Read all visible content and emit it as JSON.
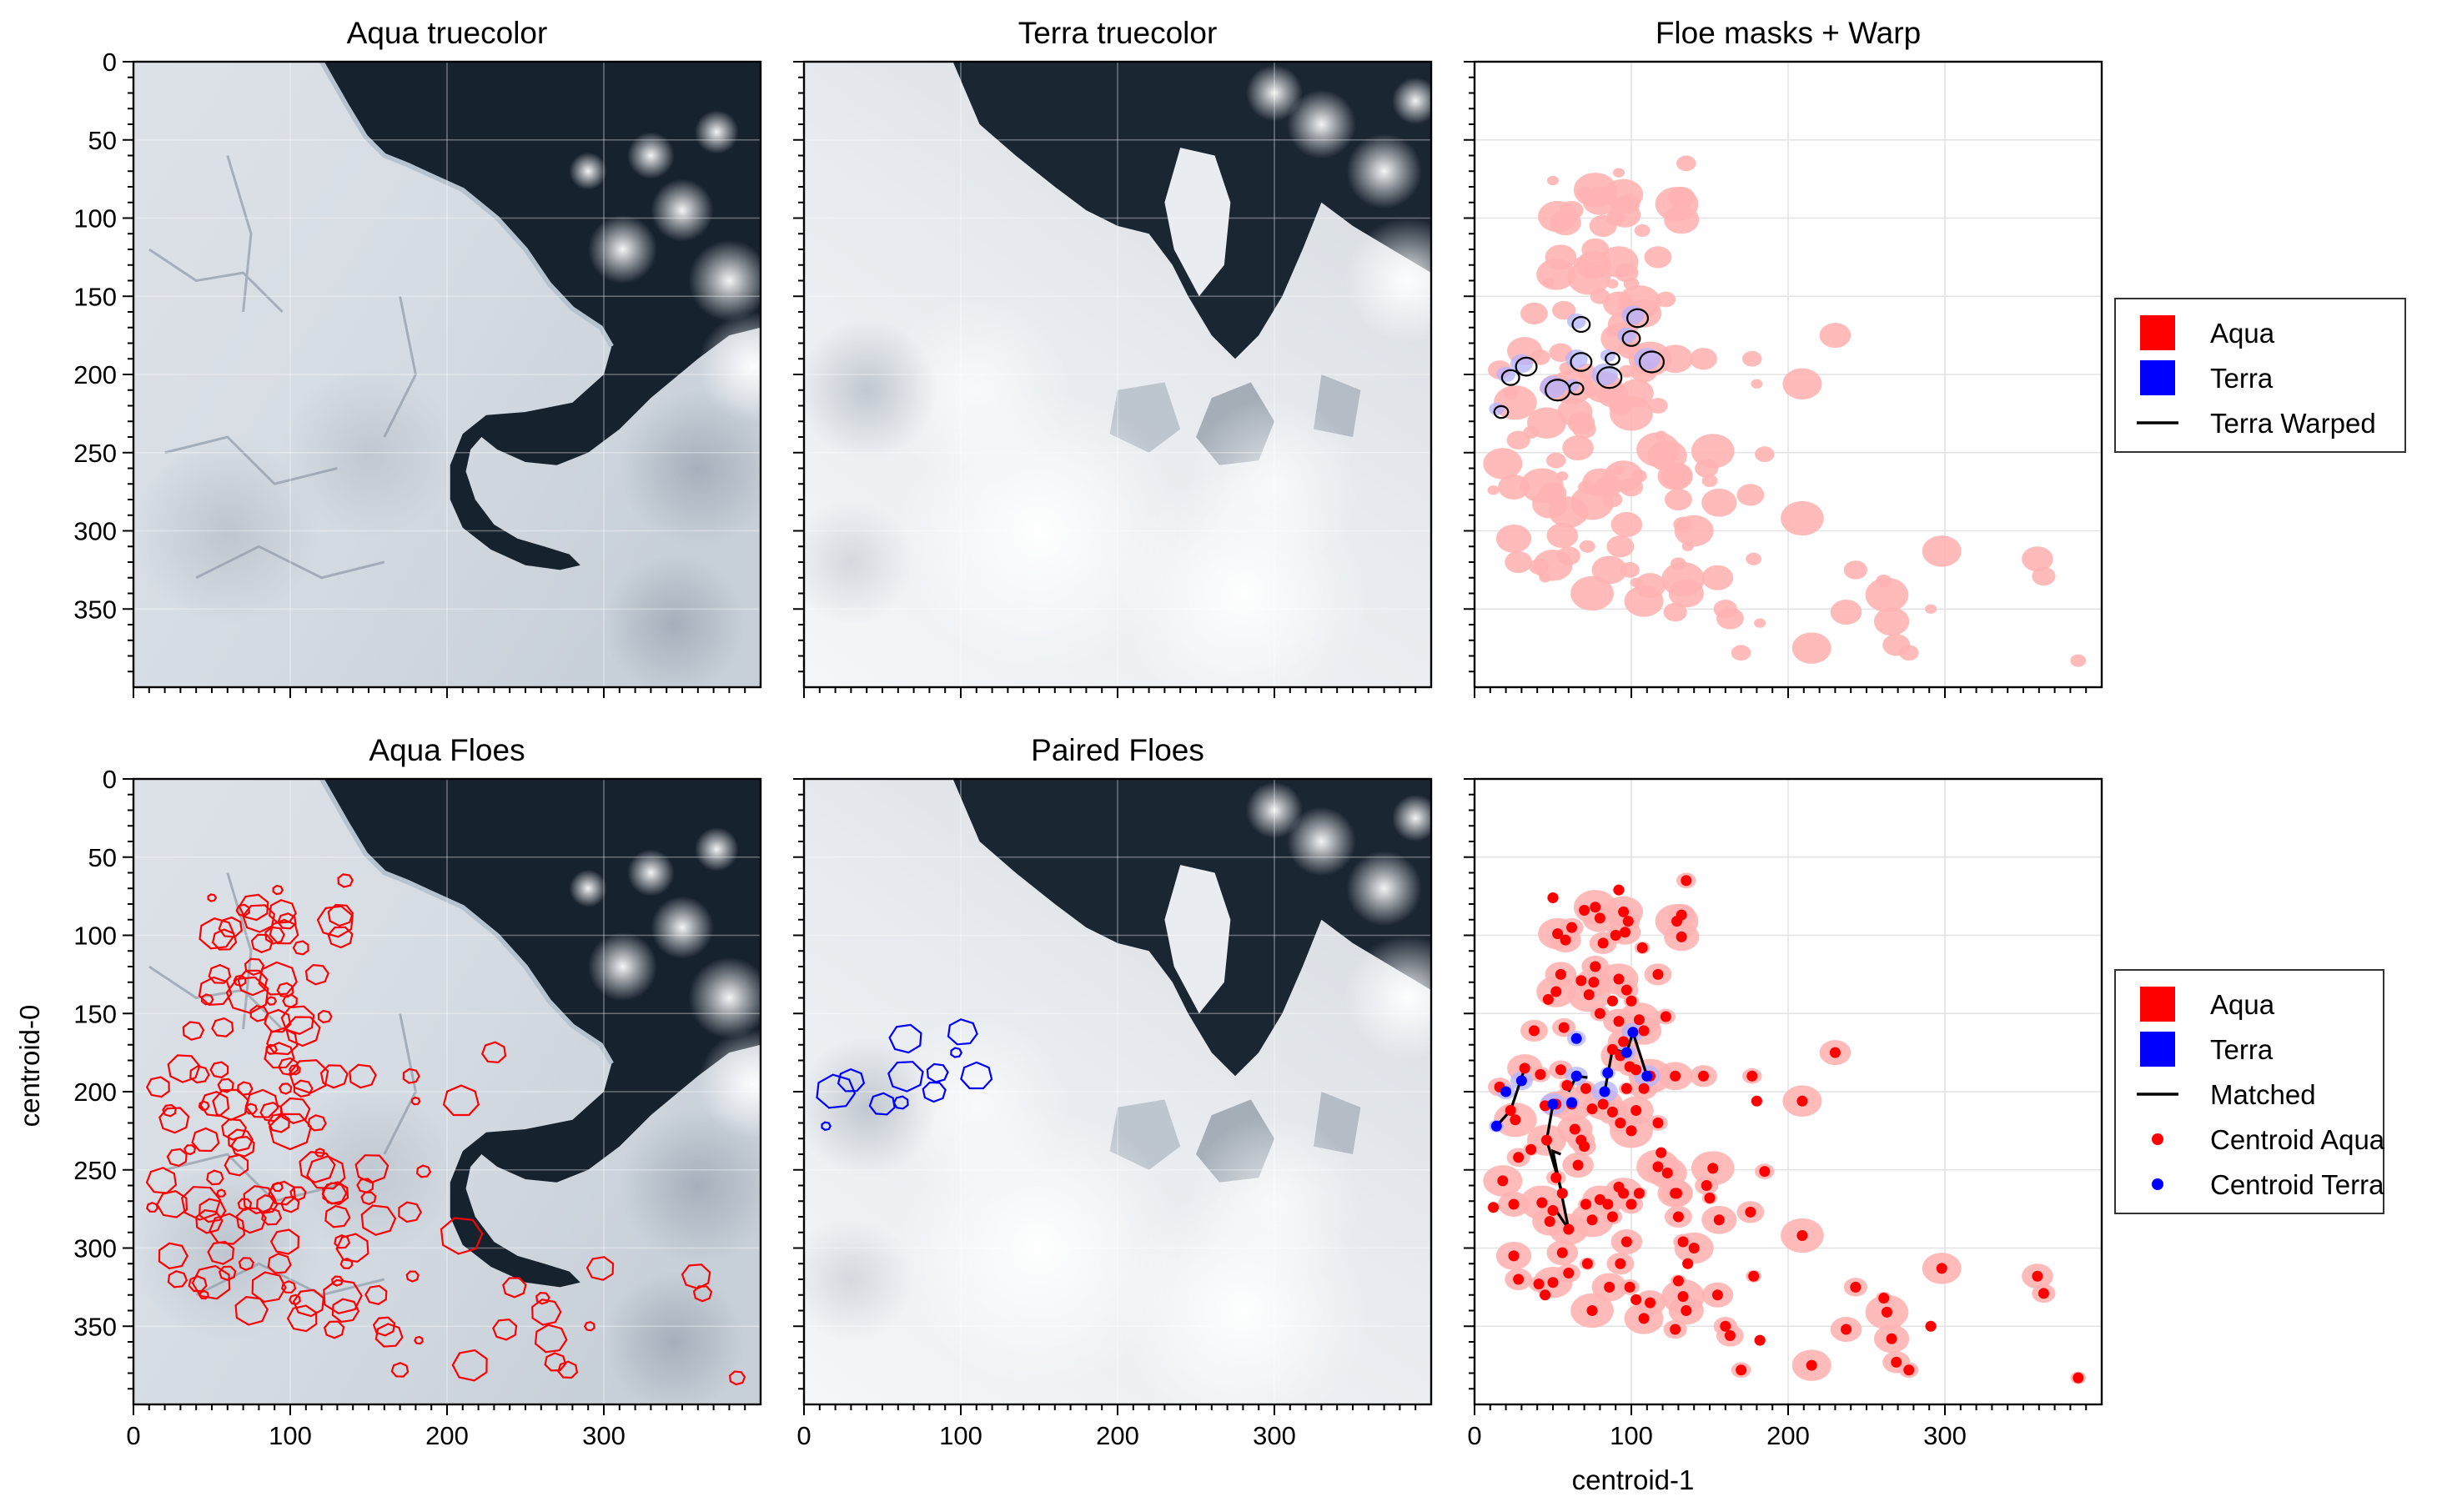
{
  "figure": {
    "panels": [
      {
        "id": "p1",
        "title": "Aqua truecolor",
        "kind": "image",
        "scene": "aqua",
        "show_y_ticks": true,
        "show_x_ticks": false
      },
      {
        "id": "p2",
        "title": "Terra truecolor",
        "kind": "image",
        "scene": "terra",
        "show_y_ticks": false,
        "show_x_ticks": false
      },
      {
        "id": "p3",
        "title": "Floe masks + Warp",
        "kind": "masks",
        "show_y_ticks": false,
        "show_x_ticks": false
      },
      {
        "id": "p4",
        "title": "Aqua Floes",
        "kind": "image",
        "scene": "aqua",
        "outlines": "aqua",
        "show_y_ticks": true,
        "show_x_ticks": true
      },
      {
        "id": "p5",
        "title": "Paired Floes",
        "kind": "image",
        "scene": "terra",
        "outlines": "terra",
        "show_y_ticks": false,
        "show_x_ticks": true
      },
      {
        "id": "p6",
        "title": "",
        "kind": "centroids",
        "show_y_ticks": false,
        "show_x_ticks": true
      }
    ],
    "legend_top": [
      {
        "label": "Aqua",
        "kind": "patch",
        "color": "#ff0000"
      },
      {
        "label": "Terra",
        "kind": "patch",
        "color": "#0000ff"
      },
      {
        "label": "Terra Warped",
        "kind": "line",
        "color": "#000000"
      }
    ],
    "legend_bottom": [
      {
        "label": "Aqua",
        "kind": "patch",
        "color": "#ff0000"
      },
      {
        "label": "Terra",
        "kind": "patch",
        "color": "#0000ff"
      },
      {
        "label": "Matched",
        "kind": "line",
        "color": "#000000"
      },
      {
        "label": "Centroid Aqua",
        "kind": "dot",
        "color": "#ff0000"
      },
      {
        "label": "Centroid Terra",
        "kind": "dot",
        "color": "#0000ff"
      }
    ]
  },
  "chart_data": {
    "type": "scatter",
    "xlabel": "centroid-1",
    "ylabel": "centroid-0",
    "xlim": [
      0,
      400
    ],
    "ylim": [
      400,
      0
    ],
    "xticks": [
      0,
      100,
      200,
      300
    ],
    "yticks": [
      0,
      50,
      100,
      150,
      200,
      250,
      300,
      350
    ],
    "grid": true,
    "legend_position": "right",
    "colors": {
      "aqua": "#ff0000",
      "terra": "#0000ff",
      "matched": "#000000",
      "aqua_mask": "#ffb3b3",
      "terra_mask": "#b3b3ff"
    },
    "series": [
      {
        "name": "Centroid Aqua",
        "points": [
          [
            50,
            76
          ],
          [
            53,
            99
          ],
          [
            58,
            103
          ],
          [
            62,
            95
          ],
          [
            70,
            84
          ],
          [
            77,
            82
          ],
          [
            80,
            89
          ],
          [
            82,
            105
          ],
          [
            90,
            100
          ],
          [
            92,
            71
          ],
          [
            95,
            85
          ],
          [
            96,
            98
          ],
          [
            98,
            91
          ],
          [
            107,
            108
          ],
          [
            129,
            91
          ],
          [
            132,
            101
          ],
          [
            132,
            87
          ],
          [
            135,
            65
          ],
          [
            47,
            141
          ],
          [
            52,
            136
          ],
          [
            55,
            125
          ],
          [
            57,
            159
          ],
          [
            68,
            129
          ],
          [
            73,
            138
          ],
          [
            76,
            130
          ],
          [
            77,
            120
          ],
          [
            80,
            150
          ],
          [
            88,
            142
          ],
          [
            92,
            128
          ],
          [
            92,
            155
          ],
          [
            97,
            135
          ],
          [
            100,
            142
          ],
          [
            105,
            154
          ],
          [
            108,
            161
          ],
          [
            117,
            125
          ],
          [
            122,
            152
          ],
          [
            88,
            173
          ],
          [
            93,
            177
          ],
          [
            95,
            168
          ],
          [
            99,
            184
          ],
          [
            103,
            186
          ],
          [
            112,
            190
          ],
          [
            128,
            190
          ],
          [
            146,
            190
          ],
          [
            177,
            190
          ],
          [
            180,
            206
          ],
          [
            209,
            206
          ],
          [
            230,
            175
          ],
          [
            16,
            197
          ],
          [
            23,
            212
          ],
          [
            26,
            218
          ],
          [
            32,
            185
          ],
          [
            38,
            161
          ],
          [
            42,
            189
          ],
          [
            45,
            209
          ],
          [
            46,
            231
          ],
          [
            52,
            208
          ],
          [
            55,
            186
          ],
          [
            59,
            196
          ],
          [
            62,
            208
          ],
          [
            64,
            224
          ],
          [
            68,
            231
          ],
          [
            71,
            198
          ],
          [
            75,
            211
          ],
          [
            82,
            208
          ],
          [
            88,
            213
          ],
          [
            93,
            220
          ],
          [
            97,
            198
          ],
          [
            100,
            225
          ],
          [
            103,
            212
          ],
          [
            108,
            198
          ],
          [
            117,
            220
          ],
          [
            119,
            239
          ],
          [
            123,
            252
          ],
          [
            129,
            265
          ],
          [
            148,
            260
          ],
          [
            150,
            268
          ],
          [
            152,
            249
          ],
          [
            156,
            282
          ],
          [
            176,
            277
          ],
          [
            185,
            251
          ],
          [
            12,
            274
          ],
          [
            18,
            257
          ],
          [
            25,
            272
          ],
          [
            28,
            242
          ],
          [
            36,
            237
          ],
          [
            43,
            271
          ],
          [
            48,
            283
          ],
          [
            50,
            276
          ],
          [
            52,
            255
          ],
          [
            56,
            265
          ],
          [
            60,
            288
          ],
          [
            66,
            247
          ],
          [
            70,
            235
          ],
          [
            71,
            272
          ],
          [
            75,
            282
          ],
          [
            80,
            269
          ],
          [
            85,
            272
          ],
          [
            88,
            280
          ],
          [
            92,
            261
          ],
          [
            95,
            265
          ],
          [
            97,
            296
          ],
          [
            100,
            272
          ],
          [
            105,
            265
          ],
          [
            117,
            248
          ],
          [
            128,
            265
          ],
          [
            130,
            280
          ],
          [
            133,
            296
          ],
          [
            136,
            310
          ],
          [
            140,
            300
          ],
          [
            155,
            330
          ],
          [
            160,
            350
          ],
          [
            178,
            318
          ],
          [
            209,
            292
          ],
          [
            25,
            305
          ],
          [
            28,
            320
          ],
          [
            41,
            323
          ],
          [
            45,
            330
          ],
          [
            50,
            322
          ],
          [
            56,
            303
          ],
          [
            60,
            316
          ],
          [
            72,
            310
          ],
          [
            75,
            340
          ],
          [
            86,
            325
          ],
          [
            93,
            310
          ],
          [
            99,
            325
          ],
          [
            103,
            333
          ],
          [
            108,
            345
          ],
          [
            112,
            335
          ],
          [
            128,
            352
          ],
          [
            130,
            321
          ],
          [
            133,
            331
          ],
          [
            135,
            340
          ],
          [
            163,
            356
          ],
          [
            170,
            378
          ],
          [
            182,
            359
          ],
          [
            215,
            375
          ],
          [
            237,
            352
          ],
          [
            243,
            325
          ],
          [
            261,
            332
          ],
          [
            263,
            341
          ],
          [
            266,
            358
          ],
          [
            269,
            373
          ],
          [
            277,
            378
          ],
          [
            291,
            350
          ],
          [
            298,
            313
          ],
          [
            359,
            318
          ],
          [
            363,
            329
          ],
          [
            385,
            383
          ]
        ]
      },
      {
        "name": "Centroid Terra",
        "points": [
          [
            14,
            222
          ],
          [
            20,
            200
          ],
          [
            30,
            193
          ],
          [
            50,
            208
          ],
          [
            62,
            207
          ],
          [
            65,
            166
          ],
          [
            65,
            190
          ],
          [
            83,
            200
          ],
          [
            85,
            188
          ],
          [
            97,
            175
          ],
          [
            101,
            162
          ],
          [
            110,
            190
          ]
        ]
      }
    ],
    "matched_lines": [
      [
        [
          14,
          222
        ],
        [
          23,
          212
        ],
        [
          32,
          185
        ]
      ],
      [
        [
          50,
          208
        ],
        [
          46,
          231
        ],
        [
          56,
          265
        ]
      ],
      [
        [
          52,
          276
        ],
        [
          60,
          288
        ],
        [
          50,
          238
        ],
        [
          55,
          240
        ]
      ],
      [
        [
          60,
          200
        ],
        [
          65,
          190
        ],
        [
          72,
          191
        ]
      ],
      [
        [
          83,
          200
        ],
        [
          88,
          173
        ],
        [
          97,
          175
        ]
      ],
      [
        [
          97,
          175
        ],
        [
          101,
          162
        ],
        [
          110,
          190
        ]
      ]
    ]
  }
}
